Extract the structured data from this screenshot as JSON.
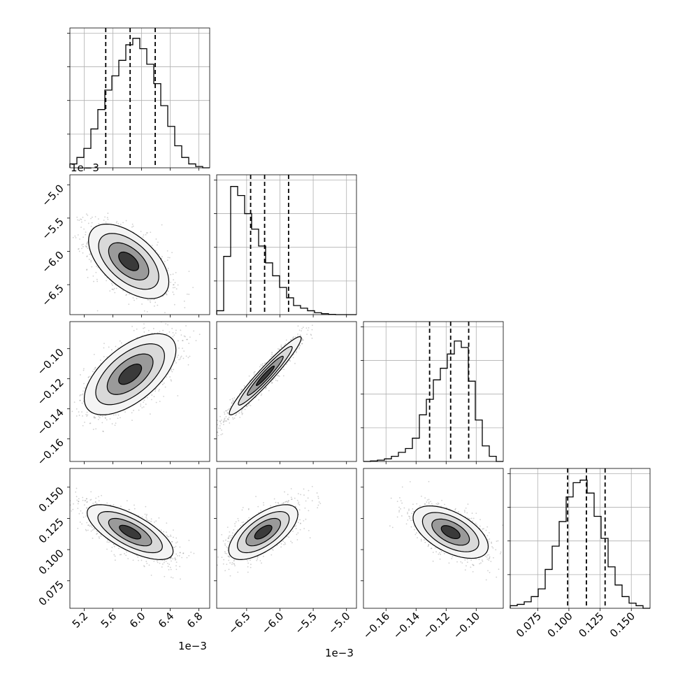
{
  "chart_data": {
    "type": "corner",
    "parameters": [
      {
        "index": 0,
        "range": [
          5.0,
          6.95
        ],
        "ticks": [
          "5.2",
          "5.6",
          "6.0",
          "6.4",
          "6.8"
        ],
        "tick_values": [
          5.2,
          5.6,
          6.0,
          6.4,
          6.8
        ],
        "offset_text": "1e−3",
        "quantiles": [
          5.5,
          5.84,
          6.19
        ]
      },
      {
        "index": 1,
        "range": [
          -6.95,
          -4.85
        ],
        "ticks": [
          "−6.5",
          "−6.0",
          "−5.5",
          "−5.0"
        ],
        "tick_values": [
          -6.5,
          -6.0,
          -5.5,
          -5.0
        ],
        "offset_text": "1e−3",
        "quantiles": [
          -6.44,
          -6.23,
          -5.87
        ]
      },
      {
        "index": 2,
        "range": [
          -0.175,
          -0.082
        ],
        "ticks": [
          "−0.16",
          "−0.14",
          "−0.12",
          "−0.10"
        ],
        "tick_values": [
          -0.16,
          -0.14,
          -0.12,
          -0.1
        ],
        "offset_text": "",
        "quantiles": [
          -0.131,
          -0.117,
          -0.105
        ]
      },
      {
        "index": 3,
        "range": [
          0.053,
          0.165
        ],
        "ticks": [
          "0.075",
          "0.100",
          "0.125",
          "0.150"
        ],
        "tick_values": [
          0.075,
          0.1,
          0.125,
          0.15
        ],
        "offset_text": "",
        "quantiles": [
          0.099,
          0.114,
          0.129
        ]
      }
    ],
    "histograms": [
      [
        0.03,
        0.08,
        0.15,
        0.3,
        0.45,
        0.6,
        0.71,
        0.83,
        0.95,
        1.0,
        0.92,
        0.8,
        0.65,
        0.48,
        0.32,
        0.17,
        0.08,
        0.03,
        0.01,
        0.0
      ],
      [
        0.03,
        0.45,
        0.99,
        0.92,
        0.78,
        0.66,
        0.53,
        0.4,
        0.3,
        0.21,
        0.13,
        0.07,
        0.05,
        0.03,
        0.015,
        0.007,
        0.002,
        0.0,
        0.0,
        0.0
      ],
      [
        0.0,
        0.004,
        0.01,
        0.02,
        0.04,
        0.07,
        0.1,
        0.18,
        0.36,
        0.48,
        0.63,
        0.72,
        0.83,
        0.93,
        0.88,
        0.62,
        0.32,
        0.12,
        0.04,
        0.0
      ],
      [
        0.02,
        0.03,
        0.05,
        0.09,
        0.15,
        0.3,
        0.48,
        0.67,
        0.86,
        0.97,
        0.99,
        0.89,
        0.71,
        0.54,
        0.32,
        0.18,
        0.09,
        0.04,
        0.02,
        0.0
      ]
    ],
    "pairs": [
      {
        "x": 0,
        "y": 1,
        "mean": [
          5.82,
          -6.15
        ],
        "sd": [
          0.28,
          0.28
        ],
        "rho": -0.55
      },
      {
        "x": 0,
        "y": 2,
        "mean": [
          5.84,
          -0.117
        ],
        "sd": [
          0.32,
          0.0135
        ],
        "rho": 0.6
      },
      {
        "x": 1,
        "y": 2,
        "mean": [
          -6.22,
          -0.118
        ],
        "sd": [
          0.27,
          0.013
        ],
        "rho": 0.96
      },
      {
        "x": 0,
        "y": 3,
        "mean": [
          5.84,
          0.114
        ],
        "sd": [
          0.3,
          0.011
        ],
        "rho": -0.7
      },
      {
        "x": 1,
        "y": 3,
        "mean": [
          -6.25,
          0.114
        ],
        "sd": [
          0.26,
          0.011
        ],
        "rho": 0.65
      },
      {
        "x": 2,
        "y": 3,
        "mean": [
          -0.117,
          0.114
        ],
        "sd": [
          0.0125,
          0.0105
        ],
        "rho": -0.55
      }
    ],
    "contour_levels_sigma": [
      0.5,
      1.0,
      1.5,
      2.0
    ],
    "grid": true
  }
}
